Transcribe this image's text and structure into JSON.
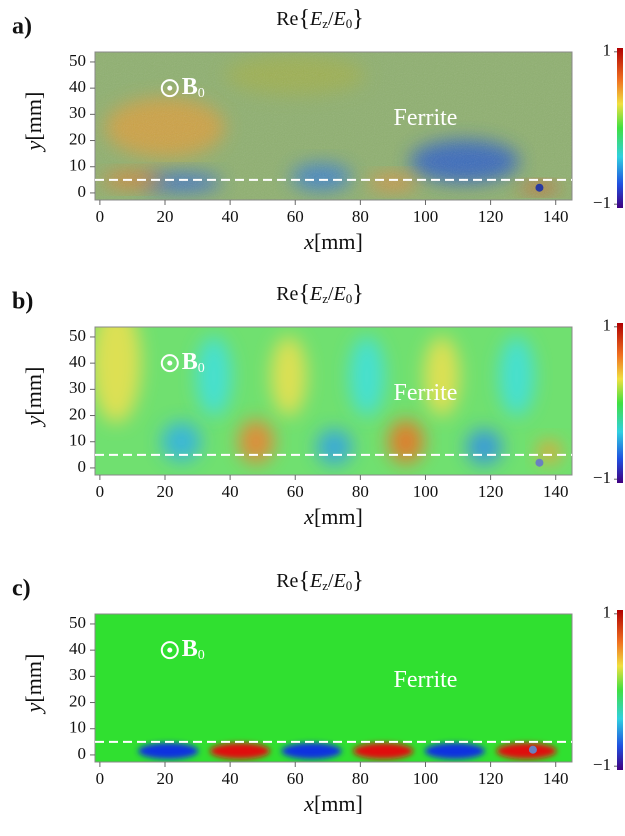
{
  "chart_data": [
    {
      "type": "heatmap",
      "panel": "a)",
      "title_parts": [
        "Re",
        "{",
        "E",
        "z",
        "/",
        "E",
        "0",
        "}"
      ],
      "x_label_parts": [
        "x",
        "[mm]"
      ],
      "y_label_parts": [
        "y",
        "[mm]"
      ],
      "xlim": [
        -1.5,
        145
      ],
      "ylim": [
        -2.7,
        53.8
      ],
      "xticks": [
        0,
        20,
        40,
        60,
        80,
        100,
        120,
        140
      ],
      "yticks": [
        0,
        10,
        20,
        30,
        40,
        50
      ],
      "clim": [
        -1.05,
        1.05
      ],
      "cticks": [
        1,
        {
          "value": -1,
          "label": "−1"
        }
      ],
      "annotations": {
        "field": [
          "B",
          "0"
        ],
        "material": "Ferrite"
      },
      "hline": 5,
      "point": {
        "x": 135,
        "y": 2
      }
    },
    {
      "type": "heatmap",
      "panel": "b)",
      "title_parts": [
        "Re",
        "{",
        "E",
        "z",
        "/",
        "E",
        "0",
        "}"
      ],
      "x_label_parts": [
        "x",
        "[mm]"
      ],
      "y_label_parts": [
        "y",
        "[mm]"
      ],
      "xlim": [
        -1.5,
        145
      ],
      "ylim": [
        -2.7,
        53.8
      ],
      "xticks": [
        0,
        20,
        40,
        60,
        80,
        100,
        120,
        140
      ],
      "yticks": [
        0,
        10,
        20,
        30,
        40,
        50
      ],
      "clim": [
        -1.05,
        1.05
      ],
      "cticks": [
        1,
        {
          "value": -1,
          "label": "−1"
        }
      ],
      "annotations": {
        "field": [
          "B",
          "0"
        ],
        "material": "Ferrite"
      },
      "hline": 5,
      "point": {
        "x": 135,
        "y": 2
      }
    },
    {
      "type": "heatmap",
      "panel": "c)",
      "title_parts": [
        "Re",
        "{",
        "E",
        "z",
        "/",
        "E",
        "0",
        "}"
      ],
      "x_label_parts": [
        "x",
        "[mm]"
      ],
      "y_label_parts": [
        "y",
        "[mm]"
      ],
      "xlim": [
        -1.5,
        145
      ],
      "ylim": [
        -2.7,
        53.8
      ],
      "xticks": [
        0,
        20,
        40,
        60,
        80,
        100,
        120,
        140
      ],
      "yticks": [
        0,
        10,
        20,
        30,
        40,
        50
      ],
      "clim": [
        -1.05,
        1.05
      ],
      "cticks": [
        1,
        {
          "value": -1,
          "label": "−1"
        }
      ],
      "annotations": {
        "field": [
          "B",
          "0"
        ],
        "material": "Ferrite"
      },
      "hline": 5,
      "point": {
        "x": 133,
        "y": 2
      }
    }
  ]
}
